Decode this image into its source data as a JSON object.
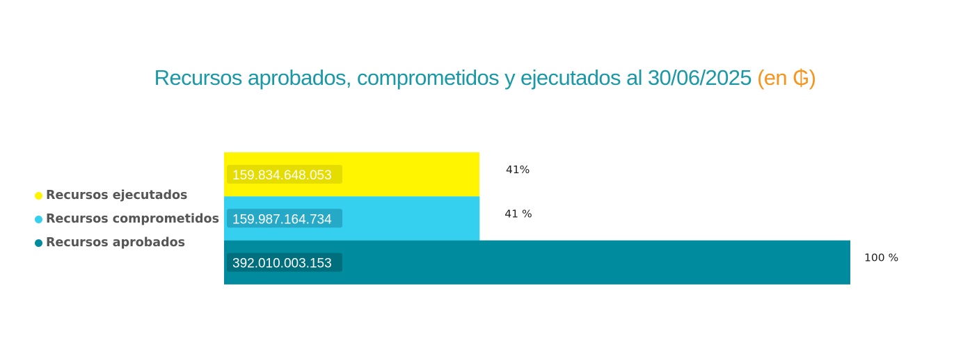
{
  "title": {
    "main": "Recursos aprobados, comprometidos y ejecutados al 30/06/2025",
    "unit": "(en ₲)"
  },
  "legend": [
    {
      "label": "Recursos ejecutados",
      "color": "#FFF500"
    },
    {
      "label": "Recursos comprometidos",
      "color": "#35D0EF"
    },
    {
      "label": "Recursos aprobados",
      "color": "#008C9E"
    }
  ],
  "chart_data": {
    "type": "bar",
    "orientation": "horizontal",
    "title": "Recursos aprobados, comprometidos y ejecutados al 30/06/2025 (en ₲)",
    "xlim": [
      0,
      392010003153
    ],
    "legend_position": "left",
    "grid": false,
    "series": [
      {
        "name": "Recursos ejecutados",
        "value": 159834648053,
        "value_label": "159.834.648.053",
        "percent_label": "41%",
        "color": "#FFF500"
      },
      {
        "name": "Recursos comprometidos",
        "value": 159987164734,
        "value_label": "159.987.164.734",
        "percent_label": "41 %",
        "color": "#35D0EF"
      },
      {
        "name": "Recursos aprobados",
        "value": 392010003153,
        "value_label": "392.010.003.153",
        "percent_label": "100 %",
        "color": "#008C9E"
      }
    ]
  }
}
